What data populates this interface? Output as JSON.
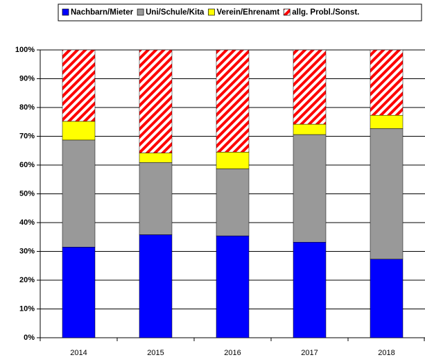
{
  "chart_data": {
    "type": "stacked_bar",
    "categories": [
      "2014",
      "2015",
      "2016",
      "2017",
      "2018"
    ],
    "series": [
      {
        "name": "Nachbarn/Mieter",
        "color": "#0000ff",
        "values": [
          31.5,
          35.8,
          35.4,
          33.2,
          27.3
        ]
      },
      {
        "name": "Uni/Schule/Kita",
        "color": "#999999",
        "values": [
          37.2,
          25.1,
          23.3,
          37.4,
          45.4
        ]
      },
      {
        "name": "Verein/Ehrenamt",
        "color": "#ffff00",
        "values": [
          6.5,
          3.3,
          5.8,
          3.6,
          4.6
        ]
      },
      {
        "name": "allg. Probl./Sonst.",
        "color": "#ff0000",
        "pattern": "hatch",
        "values": [
          24.8,
          35.8,
          35.5,
          25.8,
          22.7
        ]
      }
    ],
    "ylim": [
      0,
      100
    ],
    "yticks": [
      {
        "value": 0,
        "label": "0%"
      },
      {
        "value": 10,
        "label": "10%"
      },
      {
        "value": 20,
        "label": "20%"
      },
      {
        "value": 30,
        "label": "30%"
      },
      {
        "value": 40,
        "label": "40%"
      },
      {
        "value": 50,
        "label": "50%"
      },
      {
        "value": 60,
        "label": "60%"
      },
      {
        "value": 70,
        "label": "70%"
      },
      {
        "value": 80,
        "label": "80%"
      },
      {
        "value": 90,
        "label": "90%"
      },
      {
        "value": 100,
        "label": "100%"
      }
    ],
    "grid": true,
    "legend": "top"
  }
}
